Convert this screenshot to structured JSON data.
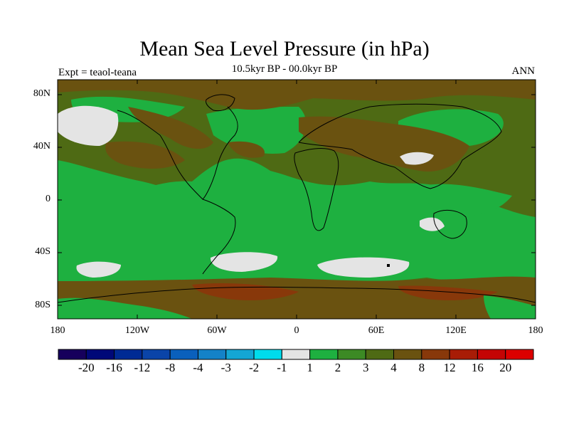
{
  "title": "Mean Sea Level Pressure (in hPa)",
  "subtitle": "10.5kyr BP - 00.0kyr BP",
  "experiment": "Expt = teaol-teana",
  "season": "ANN",
  "lat_labels": [
    "80N",
    "40N",
    "0",
    "40S",
    "80S"
  ],
  "lon_labels": [
    "180",
    "120W",
    "60W",
    "0",
    "60E",
    "120E",
    "180"
  ],
  "colorbar": {
    "labels": [
      "-20",
      "-16",
      "-12",
      "-8",
      "-4",
      "-3",
      "-2",
      "-1",
      "1",
      "2",
      "3",
      "4",
      "8",
      "12",
      "16",
      "20"
    ],
    "colors": [
      "#16005c",
      "#000878",
      "#002a94",
      "#0a44a8",
      "#0a60bc",
      "#1482c8",
      "#14a6d4",
      "#00dcec",
      "#e4e4e4",
      "#1eb040",
      "#3c8a24",
      "#4e6a14",
      "#6a5210",
      "#88380a",
      "#a81c06",
      "#c40404",
      "#dc0000"
    ]
  },
  "map_colors": {
    "white": "#e4e4e4",
    "bright_green": "#1eb040",
    "mid_green": "#3c8a24",
    "olive": "#4e6a14",
    "brown": "#6a5210",
    "dark_brown": "#88380a"
  }
}
